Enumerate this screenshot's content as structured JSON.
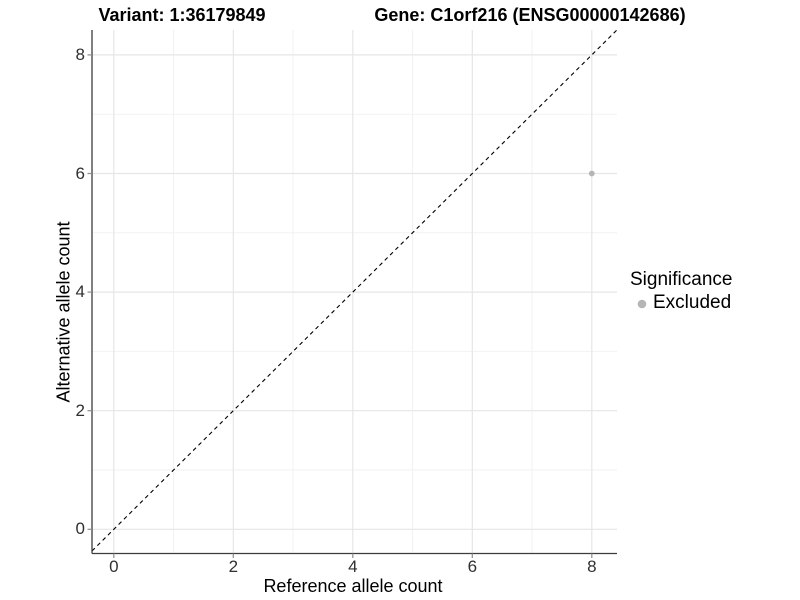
{
  "chart_data": {
    "type": "scatter",
    "titles": {
      "left": "Variant: 1:36179849",
      "right": "Gene: C1orf216 (ENSG00000142686)"
    },
    "xlabel": "Reference allele count",
    "ylabel": "Alternative allele count",
    "x_ticks": [
      0,
      2,
      4,
      6,
      8
    ],
    "y_ticks": [
      0,
      2,
      4,
      6,
      8
    ],
    "x_minor": [
      1,
      3,
      5,
      7
    ],
    "y_minor": [
      1,
      3,
      5,
      7
    ],
    "xlim": [
      -0.4,
      8.4
    ],
    "ylim": [
      -0.4,
      8.4
    ],
    "grid": "major+minor",
    "points": [
      {
        "x": 8,
        "y": 6,
        "series": "Excluded"
      }
    ],
    "reference_line": {
      "type": "identity y=x",
      "style": "dashed",
      "color": "#000000"
    },
    "legend": {
      "title": "Significance",
      "position": "right",
      "items": [
        {
          "label": "Excluded",
          "color": "#b5b5b5"
        }
      ]
    }
  },
  "colors": {
    "background": "#ffffff",
    "grid_major": "#e6e6e6",
    "grid_minor": "#f2f2f2",
    "axis_line": "#3c3c3c",
    "tick_mark": "#8c8c8c",
    "tick_label": "#303030",
    "title_text": "#000000",
    "point": "#b5b5b5"
  }
}
